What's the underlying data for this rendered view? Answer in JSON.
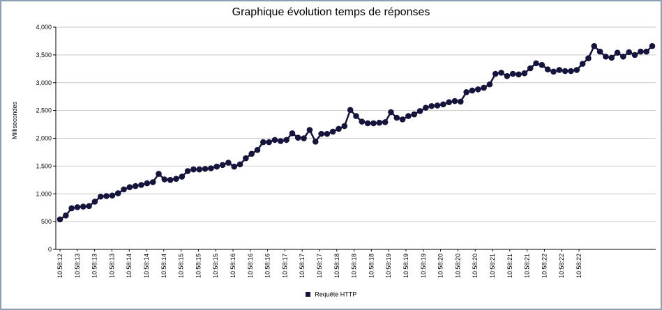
{
  "colors": {
    "series": "#14143c",
    "grid": "#c8c8c8",
    "axis": "#000000"
  },
  "chart_data": {
    "type": "line",
    "title": "Graphique évolution temps de réponses",
    "ylabel": "Millisecondes",
    "xlabel": "",
    "ylim": [
      0,
      4000
    ],
    "y_ticks": [
      0,
      500,
      1000,
      1500,
      2000,
      2500,
      3000,
      3500,
      4000
    ],
    "y_tick_labels": [
      "0",
      "500",
      "1,000",
      "1,500",
      "2,000",
      "2,500",
      "3,000",
      "3,500",
      "4,000"
    ],
    "x_tick_labels": [
      "10:58:12",
      "10:58:13",
      "10:58:13",
      "10:58:13",
      "10:58:14",
      "10:58:14",
      "10:58:14",
      "10:58:15",
      "10:58:15",
      "10:58:15",
      "10:58:16",
      "10:58:16",
      "10:58:16",
      "10:58:17",
      "10:58:17",
      "10:58:17",
      "10:58:18",
      "10:58:18",
      "10:58:18",
      "10:58:19",
      "10:58:19",
      "10:58:19",
      "10:58:20",
      "10:58:20",
      "10:58:20",
      "10:58:21",
      "10:58:21",
      "10:58:21",
      "10:58:22",
      "10:58:22",
      "10:58:22"
    ],
    "grid": true,
    "legend_position": "bottom",
    "series": [
      {
        "name": "Requête HTTP",
        "values": [
          540,
          610,
          740,
          760,
          770,
          780,
          860,
          950,
          960,
          970,
          1010,
          1080,
          1120,
          1140,
          1160,
          1190,
          1210,
          1360,
          1260,
          1250,
          1270,
          1310,
          1410,
          1440,
          1440,
          1450,
          1460,
          1490,
          1520,
          1560,
          1490,
          1530,
          1640,
          1720,
          1790,
          1930,
          1930,
          1970,
          1950,
          1970,
          2090,
          2010,
          2000,
          2150,
          1940,
          2080,
          2080,
          2120,
          2170,
          2220,
          2510,
          2400,
          2300,
          2270,
          2270,
          2280,
          2290,
          2470,
          2370,
          2340,
          2400,
          2430,
          2490,
          2550,
          2580,
          2590,
          2610,
          2650,
          2670,
          2660,
          2830,
          2860,
          2880,
          2910,
          2970,
          3160,
          3180,
          3120,
          3160,
          3150,
          3170,
          3260,
          3350,
          3320,
          3240,
          3200,
          3230,
          3210,
          3210,
          3230,
          3340,
          3440,
          3660,
          3560,
          3470,
          3450,
          3540,
          3470,
          3550,
          3500,
          3560,
          3560,
          3660
        ]
      }
    ]
  }
}
